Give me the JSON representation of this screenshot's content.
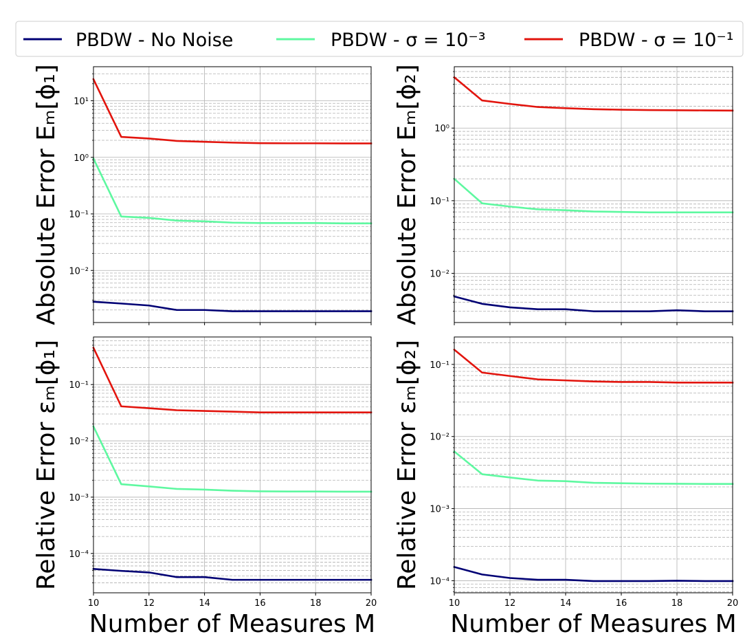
{
  "legend": {
    "entries": [
      {
        "name": "PBDW - No Noise",
        "color": "#000074"
      },
      {
        "name": "PBDW - σ = 10⁻³",
        "color": "#5ef8a0"
      },
      {
        "name": "PBDW - σ = 10⁻¹",
        "color": "#e2140d"
      }
    ]
  },
  "chart_data": [
    {
      "type": "line",
      "ylabel": "Absolute Error Eₘ[ϕ₁]",
      "yscale": "log",
      "xlim": [
        10,
        20
      ],
      "ylim": [
        0.0012,
        40
      ],
      "xticks": [
        "10",
        "12",
        "14",
        "16",
        "18",
        "20"
      ],
      "yticks": [
        {
          "value": 0.01,
          "label": "10⁻²"
        },
        {
          "value": 0.1,
          "label": "10⁻¹"
        },
        {
          "value": 1,
          "label": "10⁰"
        },
        {
          "value": 10,
          "label": "10¹"
        }
      ],
      "x": [
        10,
        11,
        12,
        13,
        14,
        15,
        16,
        17,
        18,
        19,
        20
      ],
      "grid": true,
      "series": [
        {
          "name": "PBDW - No Noise",
          "values": [
            0.0028,
            0.0026,
            0.0024,
            0.002,
            0.002,
            0.0019,
            0.0019,
            0.0019,
            0.0019,
            0.0019,
            0.0019
          ]
        },
        {
          "name": "PBDW - σ = 10⁻³",
          "values": [
            0.95,
            0.09,
            0.085,
            0.076,
            0.074,
            0.07,
            0.069,
            0.069,
            0.069,
            0.068,
            0.068
          ]
        },
        {
          "name": "PBDW - σ = 10⁻¹",
          "values": [
            24,
            2.3,
            2.15,
            1.95,
            1.88,
            1.82,
            1.78,
            1.77,
            1.77,
            1.76,
            1.76
          ]
        }
      ]
    },
    {
      "type": "line",
      "ylabel": "Absolute Error Eₘ[ϕ₂]",
      "yscale": "log",
      "xlim": [
        10,
        20
      ],
      "ylim": [
        0.0021,
        7
      ],
      "xticks": [
        "10",
        "12",
        "14",
        "16",
        "18",
        "20"
      ],
      "yticks": [
        {
          "value": 0.01,
          "label": "10⁻²"
        },
        {
          "value": 0.1,
          "label": "10⁻¹"
        },
        {
          "value": 1,
          "label": "10⁰"
        }
      ],
      "x": [
        10,
        11,
        12,
        13,
        14,
        15,
        16,
        17,
        18,
        19,
        20
      ],
      "grid": true,
      "series": [
        {
          "name": "PBDW - No Noise",
          "values": [
            0.0048,
            0.0038,
            0.0034,
            0.0032,
            0.0032,
            0.003,
            0.003,
            0.003,
            0.0031,
            0.003,
            0.003
          ]
        },
        {
          "name": "PBDW - σ = 10⁻³",
          "values": [
            0.2,
            0.092,
            0.083,
            0.076,
            0.074,
            0.071,
            0.07,
            0.069,
            0.069,
            0.069,
            0.069
          ]
        },
        {
          "name": "PBDW - σ = 10⁻¹",
          "values": [
            5.0,
            2.4,
            2.15,
            1.95,
            1.88,
            1.82,
            1.79,
            1.77,
            1.76,
            1.75,
            1.74
          ]
        }
      ]
    },
    {
      "type": "line",
      "xlabel": "Number of Measures M",
      "ylabel": "Relative Error εₘ[ϕ₁]",
      "yscale": "log",
      "xlim": [
        10,
        20
      ],
      "ylim": [
        2e-05,
        0.7
      ],
      "xticks": [
        "10",
        "12",
        "14",
        "16",
        "18",
        "20"
      ],
      "yticks": [
        {
          "value": 0.0001,
          "label": "10⁻⁴"
        },
        {
          "value": 0.001,
          "label": "10⁻³"
        },
        {
          "value": 0.01,
          "label": "10⁻²"
        },
        {
          "value": 0.1,
          "label": "10⁻¹"
        }
      ],
      "x": [
        10,
        11,
        12,
        13,
        14,
        15,
        16,
        17,
        18,
        19,
        20
      ],
      "grid": true,
      "series": [
        {
          "name": "PBDW - No Noise",
          "values": [
            5.3e-05,
            4.9e-05,
            4.6e-05,
            3.8e-05,
            3.8e-05,
            3.4e-05,
            3.4e-05,
            3.4e-05,
            3.4e-05,
            3.4e-05,
            3.4e-05
          ]
        },
        {
          "name": "PBDW - σ = 10⁻³",
          "values": [
            0.018,
            0.0017,
            0.00155,
            0.0014,
            0.00136,
            0.0013,
            0.00127,
            0.00126,
            0.00126,
            0.00125,
            0.00125
          ]
        },
        {
          "name": "PBDW - σ = 10⁻¹",
          "values": [
            0.45,
            0.041,
            0.038,
            0.035,
            0.034,
            0.033,
            0.032,
            0.032,
            0.032,
            0.032,
            0.032
          ]
        }
      ]
    },
    {
      "type": "line",
      "xlabel": "Number of Measures M",
      "ylabel": "Relative Error εₘ[ϕ₂]",
      "yscale": "log",
      "xlim": [
        10,
        20
      ],
      "ylim": [
        6.8e-05,
        0.24
      ],
      "xticks": [
        "10",
        "12",
        "14",
        "16",
        "18",
        "20"
      ],
      "yticks": [
        {
          "value": 0.0001,
          "label": "10⁻⁴"
        },
        {
          "value": 0.001,
          "label": "10⁻³"
        },
        {
          "value": 0.01,
          "label": "10⁻²"
        },
        {
          "value": 0.1,
          "label": "10⁻¹"
        }
      ],
      "x": [
        10,
        11,
        12,
        13,
        14,
        15,
        16,
        17,
        18,
        19,
        20
      ],
      "grid": true,
      "series": [
        {
          "name": "PBDW - No Noise",
          "values": [
            0.000155,
            0.000122,
            0.000109,
            0.000103,
            0.000103,
            9.9e-05,
            9.9e-05,
            9.9e-05,
            0.0001,
            9.9e-05,
            9.9e-05
          ]
        },
        {
          "name": "PBDW - σ = 10⁻³",
          "values": [
            0.0062,
            0.003,
            0.0027,
            0.00245,
            0.0024,
            0.00228,
            0.00225,
            0.00222,
            0.00221,
            0.0022,
            0.0022
          ]
        },
        {
          "name": "PBDW - σ = 10⁻¹",
          "values": [
            0.16,
            0.077,
            0.069,
            0.062,
            0.06,
            0.058,
            0.057,
            0.057,
            0.056,
            0.056,
            0.056
          ]
        }
      ]
    }
  ]
}
